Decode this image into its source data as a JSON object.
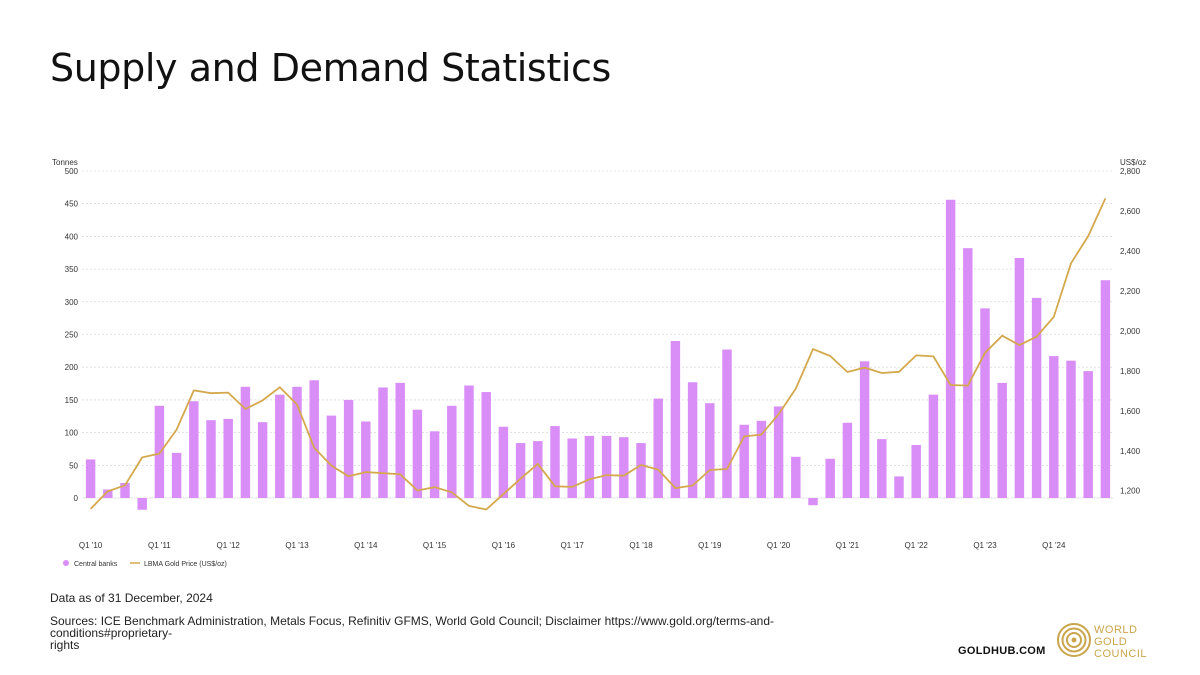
{
  "title": "Supply and Demand Statistics",
  "footer": {
    "note": "Data as of 31 December, 2024",
    "sources_line1": "Sources: ICE Benchmark Administration, Metals Focus, Refinitiv GFMS, World Gold Council; Disclaimer https://www.gold.org/terms-and-conditions#proprietary-",
    "sources_line2": "rights",
    "site": "GOLDHUB.COM",
    "logo_lines": [
      "WORLD",
      "GOLD",
      "COUNCIL"
    ]
  },
  "colors": {
    "bars": "#d98ef7",
    "line": "#d4a84c",
    "grid": "#cfcfcf",
    "axis_text": "#333333",
    "logo": "#caa54b"
  },
  "chart_data": {
    "type": "bar",
    "title": "",
    "y_left_unit": "Tonnes",
    "y_right_unit": "US$/oz",
    "ylim": [
      -50,
      500
    ],
    "ylim_right": [
      1000,
      2800
    ],
    "y_ticks": [
      0,
      50,
      100,
      150,
      200,
      250,
      300,
      350,
      400,
      450,
      500
    ],
    "y_right_ticks": [
      1200,
      1400,
      1600,
      1800,
      2000,
      2200,
      2400,
      2600,
      2800
    ],
    "y_right_tick_labels": [
      "1,200",
      "1,400",
      "1,600",
      "1,800",
      "2,000",
      "2,200",
      "2,400",
      "2,600",
      "2,800"
    ],
    "x_tick_labels": [
      "Q1 '10",
      "Q1 '11",
      "Q1 '12",
      "Q1 '13",
      "Q1 '14",
      "Q1 '15",
      "Q1 '16",
      "Q1 '17",
      "Q1 '18",
      "Q1 '19",
      "Q1 '20",
      "Q1 '21",
      "Q1 '22",
      "Q1 '23",
      "Q1 '24"
    ],
    "grid": true,
    "legend_position": "bottom-left",
    "categories": [
      "Q1 '10",
      "Q2 '10",
      "Q3 '10",
      "Q4 '10",
      "Q1 '11",
      "Q2 '11",
      "Q3 '11",
      "Q4 '11",
      "Q1 '12",
      "Q2 '12",
      "Q3 '12",
      "Q4 '12",
      "Q1 '13",
      "Q2 '13",
      "Q3 '13",
      "Q4 '13",
      "Q1 '14",
      "Q2 '14",
      "Q3 '14",
      "Q4 '14",
      "Q1 '15",
      "Q2 '15",
      "Q3 '15",
      "Q4 '15",
      "Q1 '16",
      "Q2 '16",
      "Q3 '16",
      "Q4 '16",
      "Q1 '17",
      "Q2 '17",
      "Q3 '17",
      "Q4 '17",
      "Q1 '18",
      "Q2 '18",
      "Q3 '18",
      "Q4 '18",
      "Q1 '19",
      "Q2 '19",
      "Q3 '19",
      "Q4 '19",
      "Q1 '20",
      "Q2 '20",
      "Q3 '20",
      "Q4 '20",
      "Q1 '21",
      "Q2 '21",
      "Q3 '21",
      "Q4 '21",
      "Q1 '22",
      "Q2 '22",
      "Q3 '22",
      "Q4 '22",
      "Q1 '23",
      "Q2 '23",
      "Q3 '23",
      "Q4 '23",
      "Q1 '24",
      "Q2 '24",
      "Q3 '24",
      "Q4 '24"
    ],
    "series": [
      {
        "name": "Central banks",
        "type": "bar",
        "axis": "left",
        "values": [
          59,
          13,
          23,
          -18,
          141,
          69,
          148,
          119,
          121,
          170,
          116,
          158,
          170,
          180,
          126,
          150,
          117,
          169,
          176,
          135,
          102,
          141,
          172,
          162,
          109,
          84,
          87,
          110,
          91,
          95,
          95,
          93,
          84,
          152,
          240,
          177,
          145,
          227,
          112,
          118,
          140,
          63,
          -11,
          60,
          115,
          209,
          90,
          33,
          81,
          158,
          456,
          382,
          290,
          176,
          367,
          306,
          217,
          210,
          194,
          333
        ]
      },
      {
        "name": "LBMA Gold Price (US$/oz)",
        "type": "line",
        "axis": "right",
        "values": [
          1109,
          1197,
          1227,
          1367,
          1386,
          1506,
          1702,
          1688,
          1691,
          1609,
          1652,
          1718,
          1632,
          1415,
          1326,
          1272,
          1293,
          1288,
          1282,
          1201,
          1218,
          1192,
          1124,
          1106,
          1183,
          1260,
          1335,
          1222,
          1219,
          1257,
          1278,
          1275,
          1329,
          1306,
          1213,
          1226,
          1304,
          1309,
          1472,
          1481,
          1583,
          1711,
          1909,
          1874,
          1794,
          1816,
          1789,
          1795,
          1877,
          1872,
          1729,
          1726,
          1890,
          1976,
          1929,
          1971,
          2070,
          2338,
          2474,
          2663
        ]
      }
    ]
  }
}
